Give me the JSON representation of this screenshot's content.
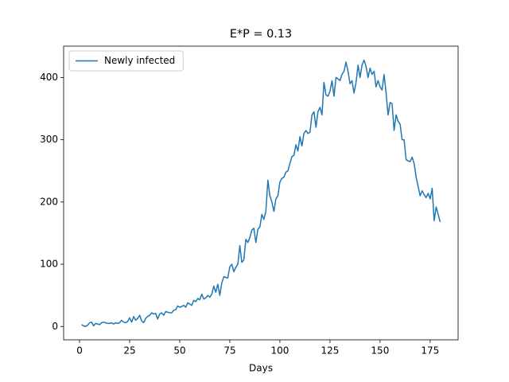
{
  "chart_data": {
    "type": "line",
    "title": "E*P = 0.13",
    "x_label": "Days",
    "x": [
      1,
      2,
      3,
      4,
      5,
      6,
      7,
      8,
      9,
      10,
      11,
      12,
      13,
      14,
      15,
      16,
      17,
      18,
      19,
      20,
      21,
      22,
      23,
      24,
      25,
      26,
      27,
      28,
      29,
      30,
      31,
      32,
      33,
      34,
      35,
      36,
      37,
      38,
      39,
      40,
      41,
      42,
      43,
      44,
      45,
      46,
      47,
      48,
      49,
      50,
      51,
      52,
      53,
      54,
      55,
      56,
      57,
      58,
      59,
      60,
      61,
      62,
      63,
      64,
      65,
      66,
      67,
      68,
      69,
      70,
      71,
      72,
      73,
      74,
      75,
      76,
      77,
      78,
      79,
      80,
      81,
      82,
      83,
      84,
      85,
      86,
      87,
      88,
      89,
      90,
      91,
      92,
      93,
      94,
      95,
      96,
      97,
      98,
      99,
      100,
      101,
      102,
      103,
      104,
      105,
      106,
      107,
      108,
      109,
      110,
      111,
      112,
      113,
      114,
      115,
      116,
      117,
      118,
      119,
      120,
      121,
      122,
      123,
      124,
      125,
      126,
      127,
      128,
      129,
      130,
      131,
      132,
      133,
      134,
      135,
      136,
      137,
      138,
      139,
      140,
      141,
      142,
      143,
      144,
      145,
      146,
      147,
      148,
      149,
      150,
      151,
      152,
      153,
      154,
      155,
      156,
      157,
      158,
      159,
      160,
      161,
      162,
      163,
      164,
      165,
      166,
      167,
      168,
      169,
      170,
      171,
      172,
      173,
      174,
      175,
      176,
      177,
      178,
      179,
      180
    ],
    "series": [
      {
        "name": "Newly infected",
        "color": "#1f77b4",
        "values": [
          3,
          1,
          0,
          2,
          6,
          7,
          1,
          5,
          4,
          3,
          6,
          7,
          6,
          5,
          5,
          6,
          4,
          6,
          5,
          6,
          10,
          7,
          6,
          8,
          14,
          7,
          16,
          10,
          13,
          18,
          9,
          6,
          13,
          16,
          18,
          22,
          20,
          21,
          12,
          20,
          22,
          18,
          24,
          23,
          22,
          22,
          26,
          27,
          33,
          31,
          32,
          34,
          31,
          38,
          36,
          34,
          42,
          40,
          45,
          43,
          52,
          44,
          46,
          50,
          47,
          52,
          65,
          55,
          68,
          50,
          70,
          80,
          79,
          78,
          96,
          100,
          88,
          95,
          100,
          130,
          103,
          107,
          140,
          135,
          143,
          155,
          158,
          135,
          156,
          160,
          180,
          172,
          185,
          235,
          210,
          200,
          185,
          205,
          210,
          232,
          238,
          240,
          248,
          250,
          262,
          273,
          275,
          292,
          282,
          305,
          290,
          310,
          315,
          310,
          312,
          340,
          345,
          320,
          345,
          352,
          340,
          392,
          372,
          370,
          378,
          395,
          370,
          400,
          398,
          395,
          405,
          410,
          425,
          410,
          390,
          395,
          375,
          392,
          420,
          400,
          420,
          428,
          418,
          400,
          415,
          405,
          410,
          385,
          395,
          385,
          380,
          405,
          375,
          340,
          360,
          358,
          315,
          340,
          330,
          325,
          300,
          300,
          268,
          266,
          265,
          272,
          262,
          240,
          225,
          210,
          218,
          212,
          207,
          214,
          205,
          222,
          170,
          192,
          180,
          168
        ]
      }
    ],
    "xlim": [
      -7.95,
      188.95
    ],
    "ylim": [
      -21.4,
      450.4
    ],
    "xticks": [
      0,
      25,
      50,
      75,
      100,
      125,
      150,
      175
    ],
    "yticks": [
      0,
      100,
      200,
      300,
      400
    ],
    "legend": "upper left"
  }
}
